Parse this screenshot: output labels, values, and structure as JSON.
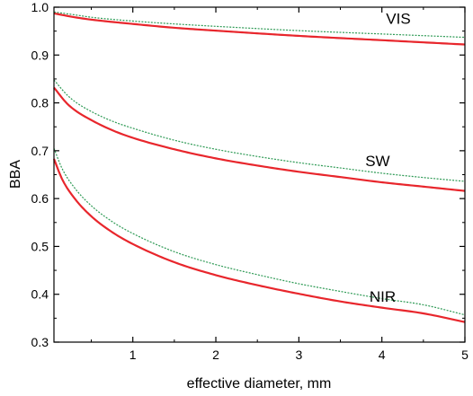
{
  "chart_data": {
    "type": "line",
    "title": "",
    "xlabel": "effective diameter, mm",
    "ylabel": "BBA",
    "xlim": [
      0.05,
      5
    ],
    "ylim": [
      0.3,
      1.0
    ],
    "x_ticks": [
      1,
      2,
      3,
      4,
      5
    ],
    "x_tick_labels": [
      "1",
      "2",
      "3",
      "4",
      "5"
    ],
    "y_ticks": [
      0.3,
      0.4,
      0.5,
      0.6,
      0.7,
      0.8,
      0.9,
      1.0
    ],
    "y_tick_labels": [
      "0.3",
      "0.4",
      "0.5",
      "0.6",
      "0.7",
      "0.8",
      "0.9",
      "1.0"
    ],
    "grid": false,
    "legend": "none",
    "colors": {
      "red": "#e8262c",
      "green": "#2e9a55"
    },
    "annotations": [
      {
        "text": "VIS",
        "x": 4.05,
        "y": 0.965
      },
      {
        "text": "SW",
        "x": 3.8,
        "y": 0.668
      },
      {
        "text": "NIR",
        "x": 3.85,
        "y": 0.384
      }
    ],
    "series": [
      {
        "color": "red",
        "style": "solid",
        "x": [
          0.05,
          0.3,
          0.5,
          1.0,
          1.5,
          2.0,
          3.0,
          4.0,
          5.0
        ],
        "y": [
          0.987,
          0.979,
          0.974,
          0.965,
          0.957,
          0.951,
          0.94,
          0.931,
          0.922
        ]
      },
      {
        "color": "green",
        "style": "dashed",
        "x": [
          0.05,
          0.3,
          0.5,
          1.0,
          1.5,
          2.0,
          3.0,
          4.0,
          5.0
        ],
        "y": [
          0.99,
          0.984,
          0.979,
          0.971,
          0.965,
          0.96,
          0.951,
          0.944,
          0.937
        ]
      },
      {
        "color": "red",
        "style": "solid",
        "x": [
          0.05,
          0.2,
          0.3,
          0.5,
          0.75,
          1.0,
          1.5,
          2.0,
          2.5,
          3.0,
          3.5,
          4.0,
          4.5,
          5.0
        ],
        "y": [
          0.832,
          0.8,
          0.785,
          0.764,
          0.743,
          0.727,
          0.703,
          0.684,
          0.669,
          0.656,
          0.645,
          0.634,
          0.625,
          0.616
        ]
      },
      {
        "color": "green",
        "style": "dashed",
        "x": [
          0.05,
          0.2,
          0.3,
          0.5,
          0.75,
          1.0,
          1.5,
          2.0,
          2.5,
          3.0,
          3.5,
          4.0,
          4.5,
          5.0
        ],
        "y": [
          0.848,
          0.818,
          0.803,
          0.782,
          0.762,
          0.747,
          0.722,
          0.703,
          0.688,
          0.675,
          0.664,
          0.653,
          0.644,
          0.636
        ]
      },
      {
        "color": "red",
        "style": "solid",
        "x": [
          0.05,
          0.15,
          0.3,
          0.5,
          0.75,
          1.0,
          1.5,
          2.0,
          2.5,
          3.0,
          3.5,
          4.0,
          4.5,
          5.0
        ],
        "y": [
          0.683,
          0.64,
          0.6,
          0.563,
          0.53,
          0.505,
          0.467,
          0.44,
          0.419,
          0.401,
          0.385,
          0.372,
          0.36,
          0.342
        ]
      },
      {
        "color": "green",
        "style": "dashed",
        "x": [
          0.05,
          0.15,
          0.3,
          0.5,
          0.75,
          1.0,
          1.5,
          2.0,
          2.5,
          3.0,
          3.5,
          4.0,
          4.5,
          5.0
        ],
        "y": [
          0.705,
          0.662,
          0.622,
          0.585,
          0.552,
          0.527,
          0.489,
          0.462,
          0.441,
          0.422,
          0.406,
          0.391,
          0.378,
          0.357
        ]
      }
    ]
  }
}
